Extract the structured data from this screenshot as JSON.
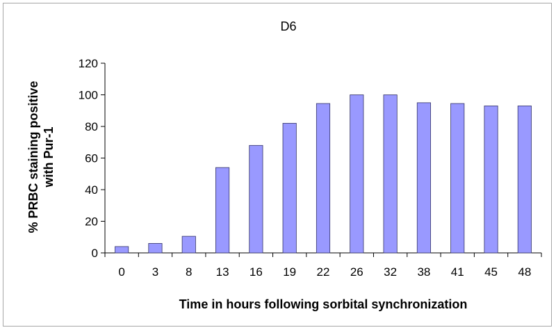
{
  "chart_data": {
    "type": "bar",
    "title": "D6",
    "xlabel": "Time in hours following sorbital synchronization",
    "ylabel_lines": [
      "% PRBC staining positive",
      "with Pur-1"
    ],
    "categories": [
      "0",
      "3",
      "8",
      "13",
      "16",
      "19",
      "22",
      "26",
      "32",
      "38",
      "41",
      "45",
      "48"
    ],
    "values": [
      4,
      6,
      10.5,
      54,
      68,
      82,
      94.5,
      100,
      100,
      95,
      94.5,
      93,
      93
    ],
    "ylim": [
      0,
      120
    ],
    "yticks": [
      0,
      20,
      40,
      60,
      80,
      100,
      120
    ],
    "grid": false,
    "legend": "none",
    "bar_color": "#9999ff",
    "bar_edge_color": "#333366"
  }
}
